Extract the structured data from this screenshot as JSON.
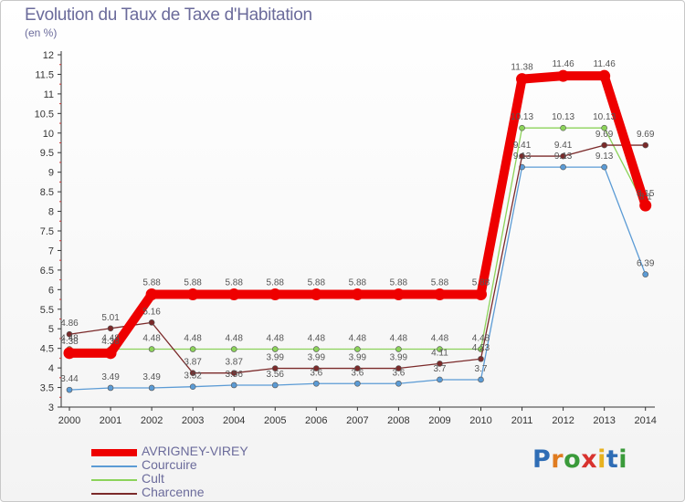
{
  "title": "Evolution du Taux de Taxe d'Habitation",
  "subtitle": "(en %)",
  "logo_text": "Proxiti",
  "chart_data": {
    "type": "line",
    "x": [
      "2000",
      "2001",
      "2002",
      "2003",
      "2004",
      "2005",
      "2006",
      "2007",
      "2008",
      "2009",
      "2010",
      "2011",
      "2012",
      "2013",
      "2014"
    ],
    "ylim": [
      3,
      12
    ],
    "yticks": [
      "3",
      "3.5",
      "4",
      "4.5",
      "5",
      "5.5",
      "6",
      "6.5",
      "7",
      "7.5",
      "8",
      "8.5",
      "9",
      "9.5",
      "10",
      "10.5",
      "11",
      "11.5",
      "12"
    ],
    "grid": false,
    "legend_position": "bottom-left",
    "series": [
      {
        "name": "AVRIGNEY-VIREY",
        "color": "#ee0000",
        "values": [
          4.38,
          4.38,
          5.88,
          5.88,
          5.88,
          5.88,
          5.88,
          5.88,
          5.88,
          5.88,
          5.88,
          11.38,
          11.46,
          11.46,
          8.15
        ],
        "labels": [
          "4.38",
          "4.38",
          "5.88",
          "5.88",
          "5.88",
          "5.88",
          "5.88",
          "5.88",
          "5.88",
          "5.88",
          "5.88",
          "11.38",
          "11.46",
          "11.46",
          "8.15"
        ]
      },
      {
        "name": "Courcuire",
        "color": "#5b9bd5",
        "values": [
          3.44,
          3.49,
          3.49,
          3.52,
          3.56,
          3.56,
          3.6,
          3.6,
          3.6,
          3.7,
          3.7,
          9.13,
          9.13,
          9.13,
          6.39
        ],
        "labels": [
          "3.44",
          "3.49",
          "3.49",
          "3.52",
          "3.56",
          "3.56",
          "3.6",
          "3.6",
          "3.6",
          "3.7",
          "3.7",
          "9.13",
          "9.13",
          "9.13",
          "6.39"
        ]
      },
      {
        "name": "Cult",
        "color": "#8cd35a",
        "values": [
          4.48,
          4.48,
          4.48,
          4.48,
          4.48,
          4.48,
          4.48,
          4.48,
          4.48,
          4.48,
          4.48,
          10.13,
          10.13,
          10.13,
          8.1
        ],
        "labels": [
          "4.48",
          "4.48",
          "4.48",
          "4.48",
          "4.48",
          "4.48",
          "4.48",
          "4.48",
          "4.48",
          "4.48",
          "4.48",
          "10.13",
          "10.13",
          "10.13",
          "8.1"
        ]
      },
      {
        "name": "Charcenne",
        "color": "#7b2a2a",
        "values": [
          4.86,
          5.01,
          5.16,
          3.87,
          3.87,
          3.99,
          3.99,
          3.99,
          3.99,
          4.11,
          4.23,
          9.41,
          9.41,
          9.69,
          9.69
        ],
        "labels": [
          "4.86",
          "5.01",
          "5.16",
          "3.87",
          "3.87",
          "3.99",
          "3.99",
          "3.99",
          "3.99",
          "4.11",
          "4.23",
          "9.41",
          "9.41",
          "9.69",
          "9.69"
        ]
      }
    ]
  }
}
